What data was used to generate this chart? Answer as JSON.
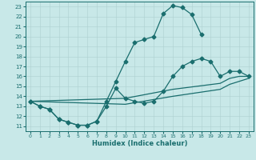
{
  "xlabel": "Humidex (Indice chaleur)",
  "xlim": [
    -0.5,
    23.5
  ],
  "ylim": [
    10.5,
    23.5
  ],
  "xticks": [
    0,
    1,
    2,
    3,
    4,
    5,
    6,
    7,
    8,
    9,
    10,
    11,
    12,
    13,
    14,
    15,
    16,
    17,
    18,
    19,
    20,
    21,
    22,
    23
  ],
  "yticks": [
    11,
    12,
    13,
    14,
    15,
    16,
    17,
    18,
    19,
    20,
    21,
    22,
    23
  ],
  "bg_color": "#c8e8e8",
  "grid_color": "#aed0d0",
  "line_color": "#1a6e6e",
  "c1_x": [
    0,
    1,
    2,
    3,
    4,
    5,
    6,
    7,
    8,
    9,
    10,
    11,
    12,
    13,
    14,
    15,
    16,
    17,
    18
  ],
  "c1_y": [
    13.5,
    13.0,
    12.7,
    11.7,
    11.4,
    11.1,
    11.1,
    11.5,
    13.5,
    15.5,
    17.5,
    19.4,
    19.7,
    20.0,
    22.3,
    23.1,
    22.9,
    22.2,
    20.2
  ],
  "c2_x": [
    0,
    1,
    2,
    3,
    4,
    5,
    6,
    7,
    8,
    9,
    10,
    11,
    12,
    13,
    14,
    15,
    16,
    17,
    18,
    19,
    20,
    21,
    22,
    23
  ],
  "c2_y": [
    13.5,
    13.0,
    12.7,
    11.7,
    11.4,
    11.1,
    11.1,
    11.5,
    13.0,
    14.8,
    13.8,
    13.5,
    13.3,
    13.5,
    14.5,
    16.0,
    17.0,
    17.5,
    17.8,
    17.5,
    16.0,
    16.5,
    16.5,
    16.0
  ],
  "c3_x": [
    0,
    10,
    15,
    20,
    21,
    22,
    23
  ],
  "c3_y": [
    13.5,
    13.8,
    14.7,
    15.3,
    15.8,
    16.0,
    16.0
  ],
  "c4_x": [
    0,
    10,
    15,
    20,
    21,
    22,
    23
  ],
  "c4_y": [
    13.5,
    13.2,
    14.0,
    14.7,
    15.2,
    15.5,
    15.8
  ]
}
